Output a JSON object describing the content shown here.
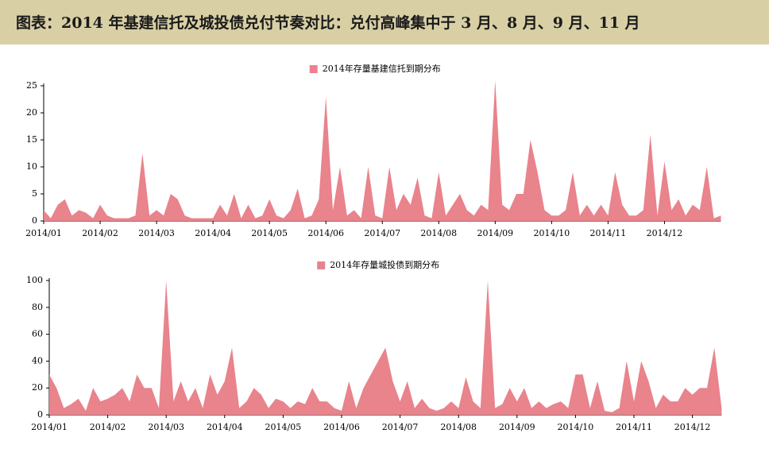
{
  "header": {
    "title": "图表：2014 年基建信托及城投债兑付节奏对比：兑付高峰集中于 3 月、8 月、9 月、11 月"
  },
  "chart_data": [
    {
      "type": "area",
      "legend": "top",
      "categories": [
        "2014/01",
        null,
        null,
        null,
        null,
        null,
        null,
        null,
        "2014/02",
        null,
        null,
        null,
        null,
        null,
        null,
        null,
        "2014/03",
        null,
        null,
        null,
        null,
        null,
        null,
        null,
        "2014/04",
        null,
        null,
        null,
        null,
        null,
        null,
        null,
        "2014/05",
        null,
        null,
        null,
        null,
        null,
        null,
        null,
        "2014/06",
        null,
        null,
        null,
        null,
        null,
        null,
        null,
        "2014/07",
        null,
        null,
        null,
        null,
        null,
        null,
        null,
        "2014/08",
        null,
        null,
        null,
        null,
        null,
        null,
        null,
        "2014/09",
        null,
        null,
        null,
        null,
        null,
        null,
        null,
        "2014/10",
        null,
        null,
        null,
        null,
        null,
        null,
        null,
        "2014/11",
        null,
        null,
        null,
        null,
        null,
        null,
        null,
        "2014/12",
        null,
        null,
        null,
        null,
        null,
        null,
        null,
        null
      ],
      "series": [
        {
          "name": "2014年存量基建信托到期分布",
          "color": "#e9838c",
          "values": [
            2,
            0.5,
            3,
            4,
            1,
            2,
            1.5,
            0.5,
            3,
            1,
            0.5,
            0.5,
            0.5,
            1,
            12.5,
            1,
            2,
            1,
            5,
            4,
            1,
            0.5,
            0.5,
            0.5,
            0.5,
            3,
            1,
            5,
            0.5,
            3,
            0.5,
            1,
            4,
            1,
            0.5,
            2,
            6,
            0.5,
            1,
            4,
            23,
            2,
            10,
            1,
            2,
            0.5,
            10,
            1,
            0.5,
            10,
            2,
            5,
            3,
            8,
            1,
            0.5,
            9,
            1,
            3,
            5,
            2,
            1,
            3,
            2,
            26,
            3,
            2,
            5,
            5,
            15,
            9,
            2,
            1,
            1,
            2,
            9,
            1,
            3,
            1,
            3,
            1,
            9,
            3,
            1,
            1,
            2,
            16,
            1,
            11,
            2,
            4,
            1,
            3,
            2,
            10,
            0.5,
            1
          ]
        }
      ],
      "ylim": [
        0,
        25
      ],
      "yticks": [
        0,
        5,
        10,
        15,
        20,
        25
      ]
    },
    {
      "type": "area",
      "legend": "top",
      "categories": [
        "2014/01",
        null,
        null,
        null,
        null,
        null,
        null,
        null,
        "2014/02",
        null,
        null,
        null,
        null,
        null,
        null,
        null,
        "2014/03",
        null,
        null,
        null,
        null,
        null,
        null,
        null,
        "2014/04",
        null,
        null,
        null,
        null,
        null,
        null,
        null,
        "2014/05",
        null,
        null,
        null,
        null,
        null,
        null,
        null,
        "2014/06",
        null,
        null,
        null,
        null,
        null,
        null,
        null,
        "2014/07",
        null,
        null,
        null,
        null,
        null,
        null,
        null,
        "2014/08",
        null,
        null,
        null,
        null,
        null,
        null,
        null,
        "2014/09",
        null,
        null,
        null,
        null,
        null,
        null,
        null,
        "2014/10",
        null,
        null,
        null,
        null,
        null,
        null,
        null,
        "2014/11",
        null,
        null,
        null,
        null,
        null,
        null,
        null,
        "2014/12",
        null,
        null,
        null,
        null
      ],
      "series": [
        {
          "name": "2014年存量城投债到期分布",
          "color": "#e9838c",
          "values": [
            30,
            20,
            5,
            8,
            12,
            3,
            20,
            10,
            12,
            15,
            20,
            10,
            30,
            20,
            20,
            5,
            100,
            10,
            25,
            10,
            20,
            5,
            30,
            15,
            25,
            50,
            5,
            10,
            20,
            15,
            5,
            12,
            10,
            5,
            10,
            8,
            20,
            10,
            10,
            5,
            3,
            25,
            5,
            20,
            30,
            40,
            50,
            25,
            10,
            25,
            5,
            12,
            5,
            3,
            5,
            10,
            5,
            28,
            10,
            5,
            100,
            5,
            8,
            20,
            10,
            20,
            5,
            10,
            5,
            8,
            10,
            5,
            30,
            30,
            5,
            25,
            3,
            2,
            5,
            40,
            10,
            40,
            25,
            5,
            15,
            10,
            10,
            20,
            15,
            20,
            20,
            50,
            5
          ]
        }
      ],
      "ylim": [
        0,
        100
      ],
      "yticks": [
        0,
        20,
        40,
        60,
        80,
        100
      ]
    }
  ]
}
